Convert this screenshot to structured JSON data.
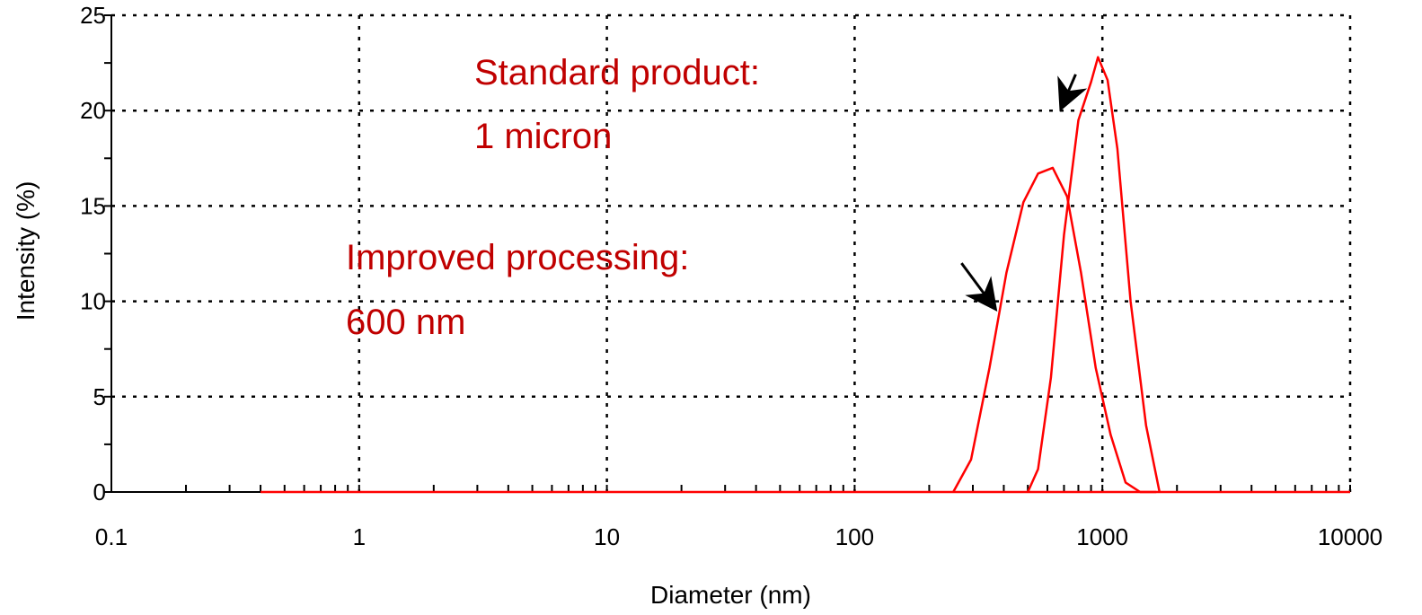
{
  "chart_data": {
    "type": "line",
    "xscale": "log",
    "xlim": [
      0.1,
      10000
    ],
    "ylim": [
      0,
      25
    ],
    "grid": true,
    "xlabel": "Diameter (nm)",
    "ylabel": "Intensity (%)",
    "x_tick_labels": [
      "0.1",
      "1",
      "10",
      "100",
      "1000",
      "10000"
    ],
    "x_tick_values": [
      0.1,
      1,
      10,
      100,
      1000,
      10000
    ],
    "y_tick_labels": [
      "0",
      "5",
      "10",
      "15",
      "20",
      "25"
    ],
    "y_tick_values": [
      0,
      5,
      10,
      15,
      20,
      25
    ],
    "line_color": "#ff0000",
    "annotation_color": "#c00000",
    "baseline_x": [
      0.4,
      10000
    ],
    "series": [
      {
        "x": [
          250,
          295,
          350,
          410,
          480,
          550,
          630,
          720,
          820,
          940,
          1080,
          1240,
          1420,
          1650
        ],
        "y": [
          0,
          1.7,
          6.5,
          11.5,
          15.2,
          16.7,
          17.0,
          15.5,
          11.5,
          6.5,
          3.0,
          0.5,
          0,
          0
        ]
      },
      {
        "x": [
          500,
          550,
          620,
          700,
          800,
          900,
          960,
          1050,
          1150,
          1300,
          1500,
          1700
        ],
        "y": [
          0,
          1.2,
          6.0,
          13.5,
          19.5,
          21.5,
          22.8,
          21.6,
          18.0,
          10.0,
          3.5,
          0
        ]
      }
    ],
    "annotations": [
      {
        "line1": "Standard product:",
        "line2": "1 micron",
        "from": [
          780,
          21.9
        ],
        "to": [
          680,
          20.1
        ]
      },
      {
        "line1": "Improved processing:",
        "line2": "600 nm",
        "from": [
          270,
          12.0
        ],
        "to": [
          370,
          9.6
        ]
      }
    ]
  }
}
